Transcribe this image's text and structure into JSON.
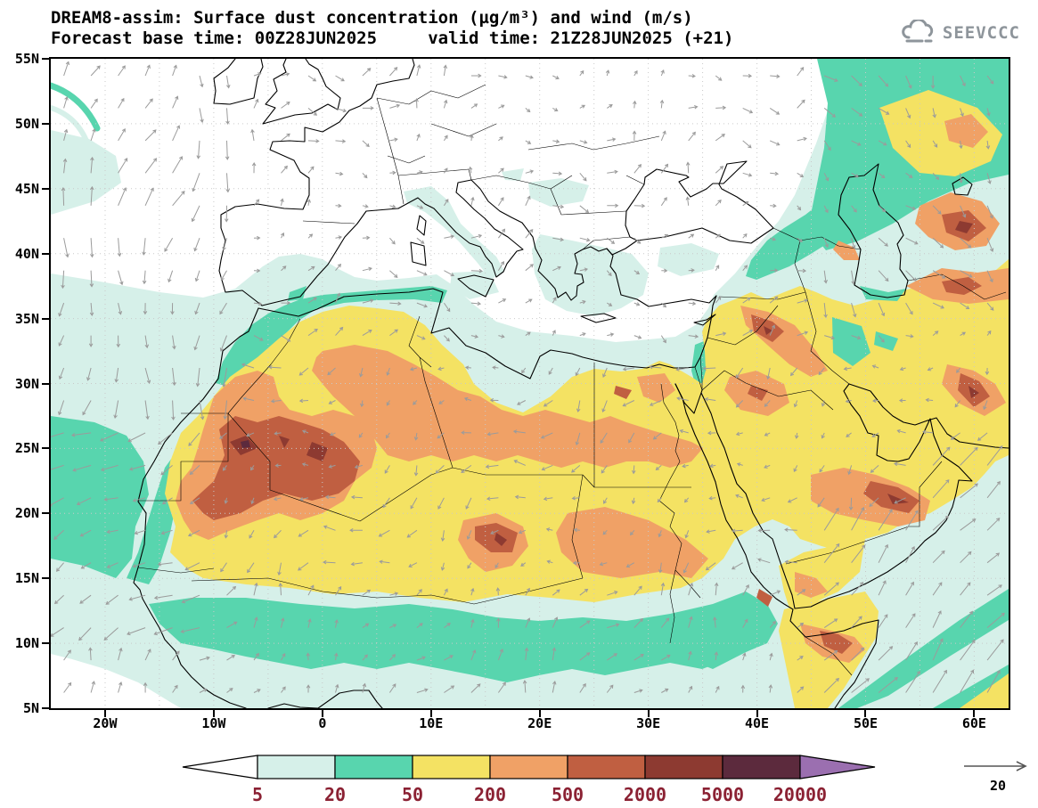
{
  "header": {
    "title_line1": "DREAM8-assim: Surface dust concentration (µg/m³) and wind (m/s)",
    "title_line2": "Forecast base time: 00Z28JUN2025     valid time: 21Z28JUN2025 (+21)",
    "logo_text": "SEEVCCC"
  },
  "axes": {
    "y_ticks": [
      "55N",
      "50N",
      "45N",
      "40N",
      "35N",
      "30N",
      "25N",
      "20N",
      "15N",
      "10N",
      "5N"
    ],
    "x_ticks": [
      "20W",
      "10W",
      "0",
      "10E",
      "20E",
      "30E",
      "40E",
      "50E",
      "60E"
    ],
    "x_tick_lons": [
      -20,
      -10,
      0,
      10,
      20,
      30,
      40,
      50,
      60
    ]
  },
  "chart_data": {
    "type": "heatmap",
    "title": "DREAM8-assim: Surface dust concentration (µg/m³) and wind (m/s)",
    "model": "DREAM8-assim",
    "variable": "Surface dust concentration",
    "units": "µg/m³",
    "overlay": "wind (m/s)",
    "forecast_base_time": "00Z28JUN2025",
    "valid_time": "21Z28JUN2025",
    "lead_hours": "+21",
    "lon_range": [
      -25.2,
      63
    ],
    "lat_range": [
      5,
      55
    ],
    "contour_levels_ug_m3": [
      5,
      20,
      50,
      200,
      500,
      2000,
      5000,
      20000
    ],
    "colors": [
      "#ffffff",
      "#d6f0e9",
      "#58d5ae",
      "#f4e263",
      "#f0a166",
      "#c05f41",
      "#8d3a31",
      "#5c2a3d",
      "#9b6fb0"
    ],
    "wind": {
      "reference_ms": 20,
      "grid_spacing_deg": 2.5,
      "color": "#9b9b9b"
    },
    "dust_maxima_regions": [
      {
        "region": "Mauritania / Western Sahara / N Mali",
        "level_ug_m3": "2000-5000"
      },
      {
        "region": "Central Algeria",
        "level_ug_m3": "2000-5000"
      },
      {
        "region": "Bodele depression (Chad/Niger)",
        "level_ug_m3": "2000-5000"
      },
      {
        "region": "Syria / W Iraq",
        "level_ug_m3": "2000-5000"
      },
      {
        "region": "NW Saudi Arabia",
        "level_ug_m3": "500-2000"
      },
      {
        "region": "Rub al Khali (SE Arabia)",
        "level_ug_m3": "2000-5000"
      },
      {
        "region": "N Somalia / Horn of Africa",
        "level_ug_m3": "500-2000"
      },
      {
        "region": "Sistan (E Iran)",
        "level_ug_m3": "2000-5000"
      },
      {
        "region": "Karakum (E of Caspian Sea)",
        "level_ug_m3": "2000-5000"
      }
    ]
  },
  "legend": {
    "labels": [
      "5",
      "20",
      "50",
      "200",
      "500",
      "2000",
      "5000",
      "20000"
    ],
    "label_color": "#8b2133",
    "wind_ref_label": "20"
  }
}
